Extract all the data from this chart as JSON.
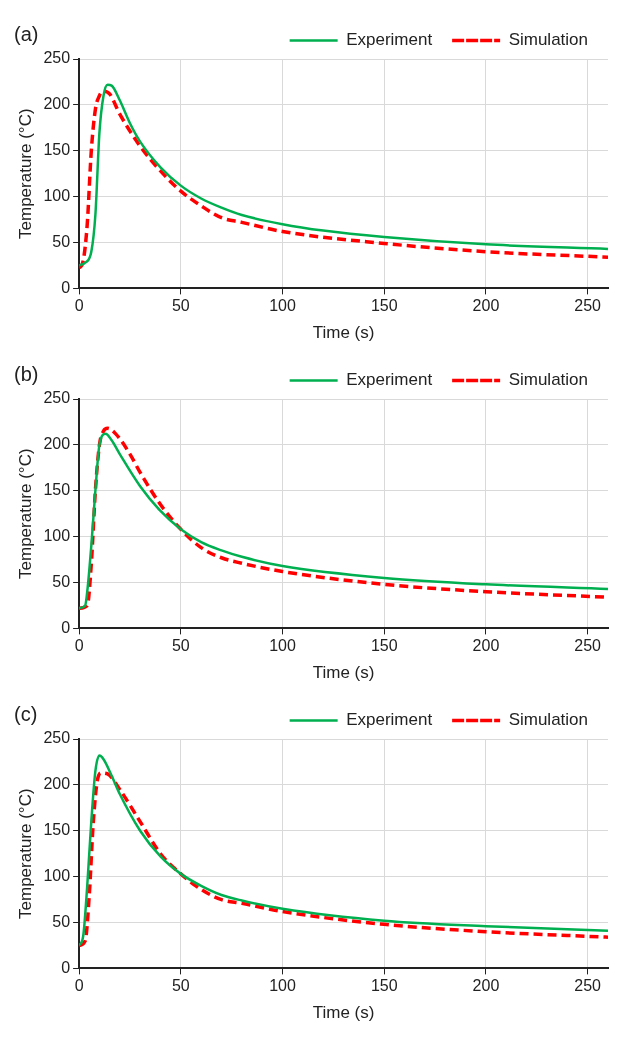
{
  "chart_data": [
    {
      "type": "line",
      "title": "(a)",
      "xlabel": "Time (s)",
      "ylabel": "Temperature (°C)",
      "xlim": [
        0,
        260
      ],
      "xticks": [
        0,
        50,
        100,
        150,
        200,
        250
      ],
      "ylim": [
        0,
        250
      ],
      "yticks": [
        0,
        50,
        100,
        150,
        200,
        250
      ],
      "grid": true,
      "legend": "top",
      "marker": "none",
      "series": [
        {
          "name": "Experiment",
          "color": "#00b050",
          "line_style": "solid",
          "x": [
            0,
            3,
            6,
            8,
            10,
            12,
            14,
            16,
            20,
            25,
            30,
            40,
            50,
            60,
            70,
            80,
            100,
            120,
            150,
            200,
            260
          ],
          "values": [
            25,
            28,
            40,
            80,
            170,
            210,
            222,
            221,
            205,
            180,
            160,
            132,
            112,
            98,
            88,
            80,
            70,
            63,
            56,
            48,
            43
          ]
        },
        {
          "name": "Simulation",
          "color": "#ff0000",
          "line_style": "dashed",
          "x": [
            0,
            2,
            4,
            6,
            8,
            10,
            12,
            15,
            20,
            30,
            40,
            50,
            60,
            70,
            80,
            100,
            150,
            200,
            260
          ],
          "values": [
            22,
            30,
            70,
            150,
            195,
            210,
            215,
            212,
            190,
            155,
            128,
            106,
            90,
            77,
            72,
            62,
            49,
            40,
            34
          ]
        }
      ]
    },
    {
      "type": "line",
      "title": "(b)",
      "xlabel": "Time (s)",
      "ylabel": "Temperature (°C)",
      "xlim": [
        0,
        260
      ],
      "xticks": [
        0,
        50,
        100,
        150,
        200,
        250
      ],
      "ylim": [
        0,
        250
      ],
      "yticks": [
        0,
        50,
        100,
        150,
        200,
        250
      ],
      "grid": true,
      "legend": "top",
      "marker": "none",
      "series": [
        {
          "name": "Experiment",
          "color": "#00b050",
          "line_style": "solid",
          "x": [
            0,
            3,
            4,
            6,
            8,
            10,
            13,
            16,
            20,
            30,
            40,
            50,
            60,
            70,
            80,
            100,
            150,
            200,
            260
          ],
          "values": [
            22,
            25,
            40,
            90,
            150,
            200,
            212,
            205,
            190,
            155,
            128,
            108,
            94,
            85,
            78,
            68,
            55,
            48,
            43
          ]
        },
        {
          "name": "Simulation",
          "color": "#ff0000",
          "line_style": "dashed",
          "x": [
            0,
            4,
            6,
            8,
            10,
            12,
            14,
            18,
            25,
            30,
            40,
            50,
            60,
            70,
            80,
            100,
            150,
            200,
            260
          ],
          "values": [
            22,
            25,
            70,
            150,
            200,
            215,
            218,
            212,
            190,
            170,
            135,
            108,
            88,
            77,
            71,
            62,
            48,
            40,
            34
          ]
        }
      ]
    },
    {
      "type": "line",
      "title": "(c)",
      "xlabel": "Time (s)",
      "ylabel": "Temperature (°C)",
      "xlim": [
        0,
        260
      ],
      "xticks": [
        0,
        50,
        100,
        150,
        200,
        250
      ],
      "ylim": [
        0,
        250
      ],
      "yticks": [
        0,
        50,
        100,
        150,
        200,
        250
      ],
      "grid": true,
      "legend": "top",
      "marker": "none",
      "series": [
        {
          "name": "Experiment",
          "color": "#00b050",
          "line_style": "solid",
          "x": [
            0,
            2,
            4,
            6,
            8,
            10,
            12,
            16,
            20,
            30,
            40,
            50,
            60,
            70,
            80,
            100,
            150,
            200,
            260
          ],
          "values": [
            25,
            35,
            90,
            160,
            215,
            232,
            228,
            210,
            190,
            150,
            122,
            103,
            90,
            80,
            74,
            65,
            52,
            46,
            41
          ]
        },
        {
          "name": "Simulation",
          "color": "#ff0000",
          "line_style": "dashed",
          "x": [
            0,
            3,
            5,
            7,
            9,
            11,
            14,
            20,
            30,
            40,
            50,
            60,
            70,
            80,
            100,
            150,
            200,
            260
          ],
          "values": [
            25,
            30,
            80,
            160,
            205,
            213,
            212,
            195,
            160,
            125,
            103,
            86,
            75,
            71,
            62,
            48,
            40,
            34
          ]
        }
      ]
    }
  ]
}
